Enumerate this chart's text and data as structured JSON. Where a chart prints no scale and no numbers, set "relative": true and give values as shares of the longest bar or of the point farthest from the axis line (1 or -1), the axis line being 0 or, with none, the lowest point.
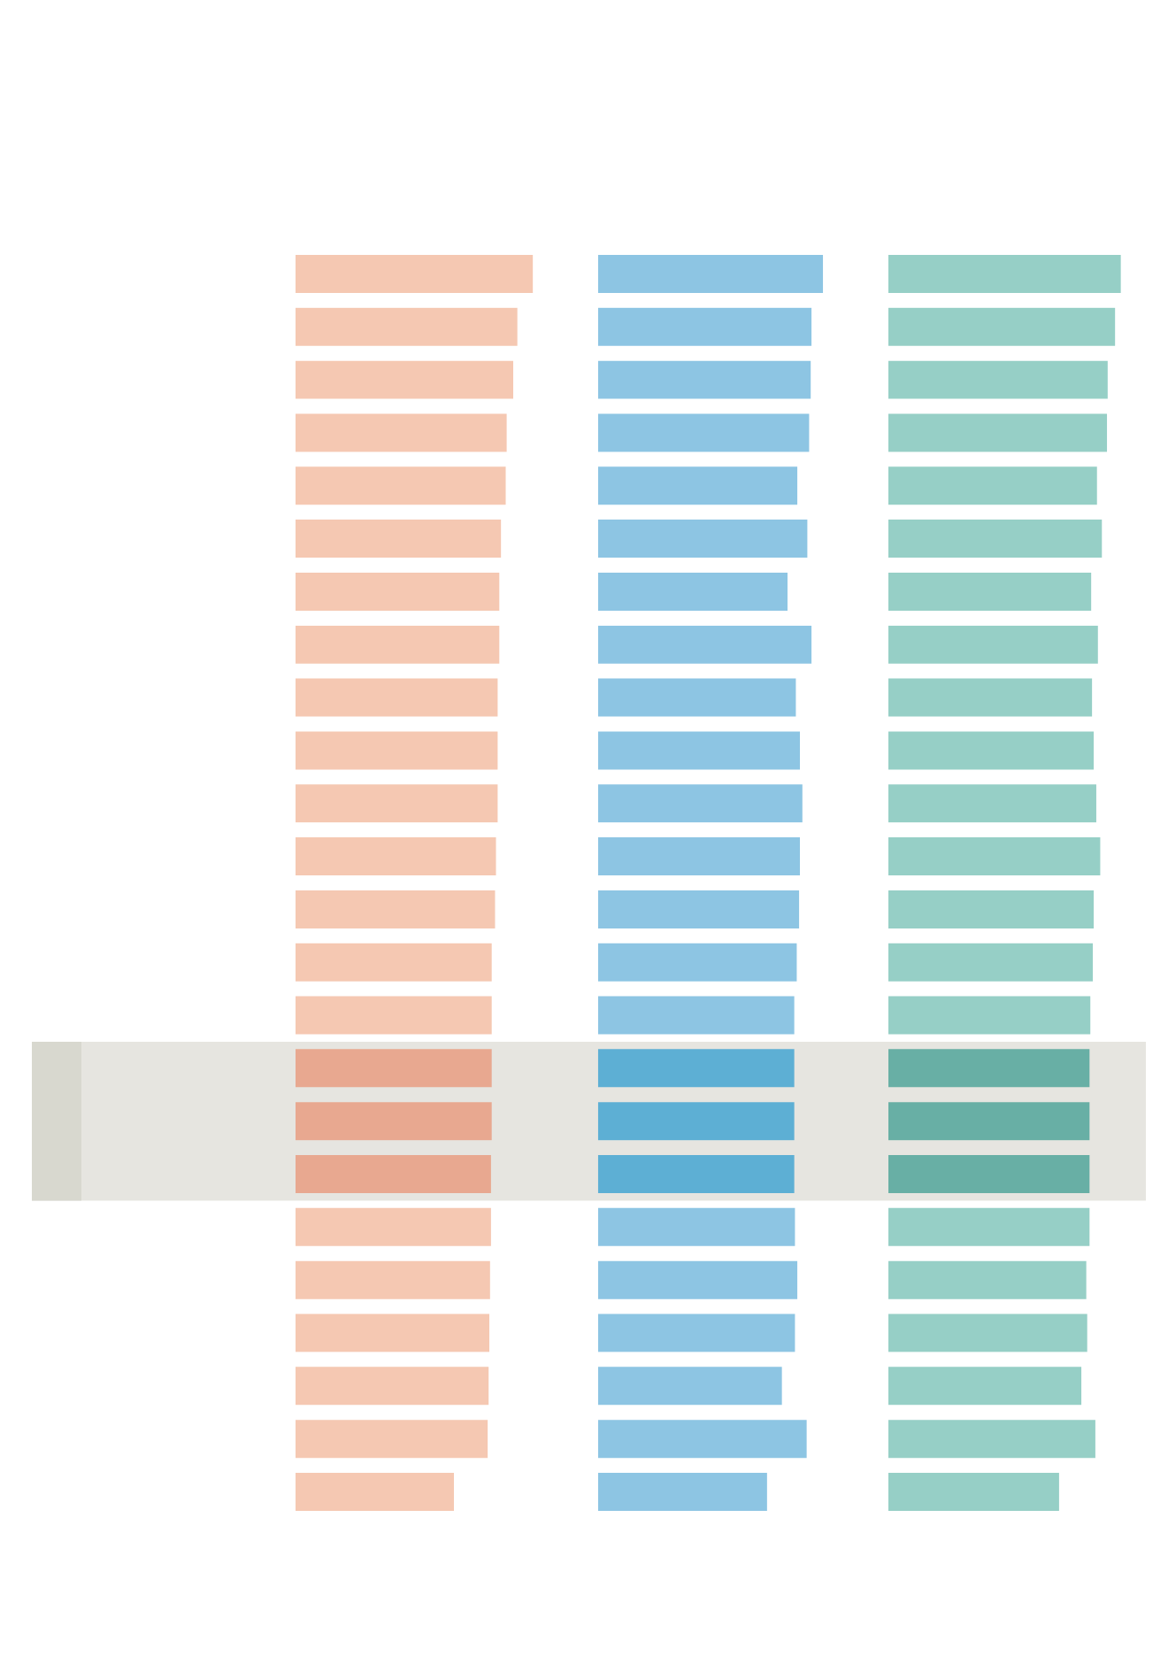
{
  "chart_data": [
    {
      "type": "bar",
      "orientation": "horizontal",
      "relative": true,
      "categories": [
        null,
        null,
        null,
        null,
        null,
        null,
        null,
        null,
        null,
        null,
        null,
        null,
        null,
        null,
        null,
        null,
        null,
        null,
        null,
        null,
        null,
        null,
        null,
        null
      ],
      "values": [
        1,
        0.934,
        0.917,
        0.889,
        0.885,
        0.865,
        0.858,
        0.858,
        0.851,
        0.851,
        0.851,
        0.844,
        0.84,
        0.826,
        0.826,
        0.826,
        0.826,
        0.823,
        0.823,
        0.819,
        0.816,
        0.813,
        0.809,
        0.667
      ],
      "colors": [
        "#f5c8b2",
        "#f5c8b2",
        "#f5c8b2",
        "#f5c8b2",
        "#f5c8b2",
        "#f5c8b2",
        "#f5c8b2",
        "#f5c8b2",
        "#f5c8b2",
        "#f5c8b2",
        "#f5c8b2",
        "#f5c8b2",
        "#f5c8b2",
        "#f5c8b2",
        "#f5c8b2",
        "#e8a890",
        "#e8a890",
        "#e8a890",
        "#f5c8b2",
        "#f5c8b2",
        "#f5c8b2",
        "#f5c8b2",
        "#f5c8b2",
        "#f5c8b2"
      ]
    },
    {
      "type": "bar",
      "orientation": "horizontal",
      "relative": true,
      "categories": [
        null,
        null,
        null,
        null,
        null,
        null,
        null,
        null,
        null,
        null,
        null,
        null,
        null,
        null,
        null,
        null,
        null,
        null,
        null,
        null,
        null,
        null,
        null,
        null
      ],
      "values": [
        1,
        0.949,
        0.945,
        0.938,
        0.886,
        0.93,
        0.842,
        0.949,
        0.879,
        0.897,
        0.908,
        0.897,
        0.894,
        0.883,
        0.872,
        0.872,
        0.872,
        0.872,
        0.875,
        0.886,
        0.875,
        0.817,
        0.927,
        0.751
      ],
      "colors": [
        "#8dc5e3",
        "#8dc5e3",
        "#8dc5e3",
        "#8dc5e3",
        "#8dc5e3",
        "#8dc5e3",
        "#8dc5e3",
        "#8dc5e3",
        "#8dc5e3",
        "#8dc5e3",
        "#8dc5e3",
        "#8dc5e3",
        "#8dc5e3",
        "#8dc5e3",
        "#8dc5e3",
        "#5dafd4",
        "#5dafd4",
        "#5dafd4",
        "#8dc5e3",
        "#8dc5e3",
        "#8dc5e3",
        "#8dc5e3",
        "#8dc5e3",
        "#8dc5e3"
      ]
    },
    {
      "type": "bar",
      "orientation": "horizontal",
      "relative": true,
      "categories": [
        null,
        null,
        null,
        null,
        null,
        null,
        null,
        null,
        null,
        null,
        null,
        null,
        null,
        null,
        null,
        null,
        null,
        null,
        null,
        null,
        null,
        null,
        null,
        null
      ],
      "values": [
        1,
        0.975,
        0.943,
        0.94,
        0.897,
        0.918,
        0.872,
        0.901,
        0.876,
        0.883,
        0.894,
        0.911,
        0.883,
        0.879,
        0.869,
        0.865,
        0.865,
        0.865,
        0.865,
        0.851,
        0.855,
        0.83,
        0.89,
        0.734
      ],
      "colors": [
        "#96cfc6",
        "#96cfc6",
        "#96cfc6",
        "#96cfc6",
        "#96cfc6",
        "#96cfc6",
        "#96cfc6",
        "#96cfc6",
        "#96cfc6",
        "#96cfc6",
        "#96cfc6",
        "#96cfc6",
        "#96cfc6",
        "#96cfc6",
        "#96cfc6",
        "#68afa5",
        "#68afa5",
        "#68afa5",
        "#96cfc6",
        "#96cfc6",
        "#96cfc6",
        "#96cfc6",
        "#96cfc6",
        "#96cfc6"
      ]
    }
  ]
}
